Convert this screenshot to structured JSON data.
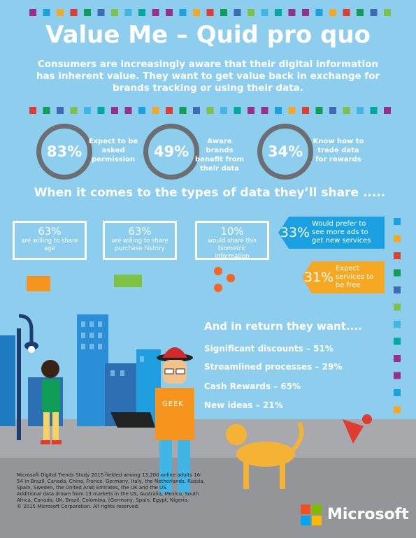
{
  "header": {
    "title": "Value Me – Quid pro quo",
    "subtitle": "Consumers are increasingly aware that their digital information has inherent value. They want to get value back in exchange for brands tracking or using their data."
  },
  "stats": [
    {
      "value": "83%",
      "label": "Expect to be asked permission"
    },
    {
      "value": "49%",
      "label": "Aware brands benefit from their data"
    },
    {
      "value": "34%",
      "label": "Know how to trade data for rewards"
    }
  ],
  "share": {
    "heading": "When it comes to the types of data they’ll share .....",
    "items": [
      {
        "value": "63%",
        "label": "are willing to share age"
      },
      {
        "value": "63%",
        "label": "are willing to share purchase history"
      },
      {
        "value": "10%",
        "label": "would share this biometric information"
      }
    ],
    "callouts": [
      {
        "value": "33%",
        "label": "Would prefer to see more ads to get new services"
      },
      {
        "value": "31%",
        "label": "Expect services to be free"
      }
    ]
  },
  "returns": {
    "heading": "And in return they want....",
    "items": [
      "Significant discounts – 51%",
      "Streamlined processes – 29%",
      "Cash Rewards – 65%",
      "New ideas – 21%"
    ]
  },
  "illustration": {
    "shirt": "GEEK"
  },
  "footer": {
    "note": [
      "Microsoft Digital Trends Study 2015 fielded among 13,200 online adults 16-54 in Brazil, Canada, China, France, Germany, Italy, the Netherlands, Russia, Spain, Sweden, the United Arab Emirates, the UK and the US.",
      "Additional data drawn from 13 markets in the US, Australia, Mexico, South Africa, Canada, UK, Brazil, Colombia, [Germany, Spain, Egypt, Nigeria.",
      "© 2015 Microsoft Corporation. All rights reserved."
    ],
    "brand": "Microsoft"
  }
}
